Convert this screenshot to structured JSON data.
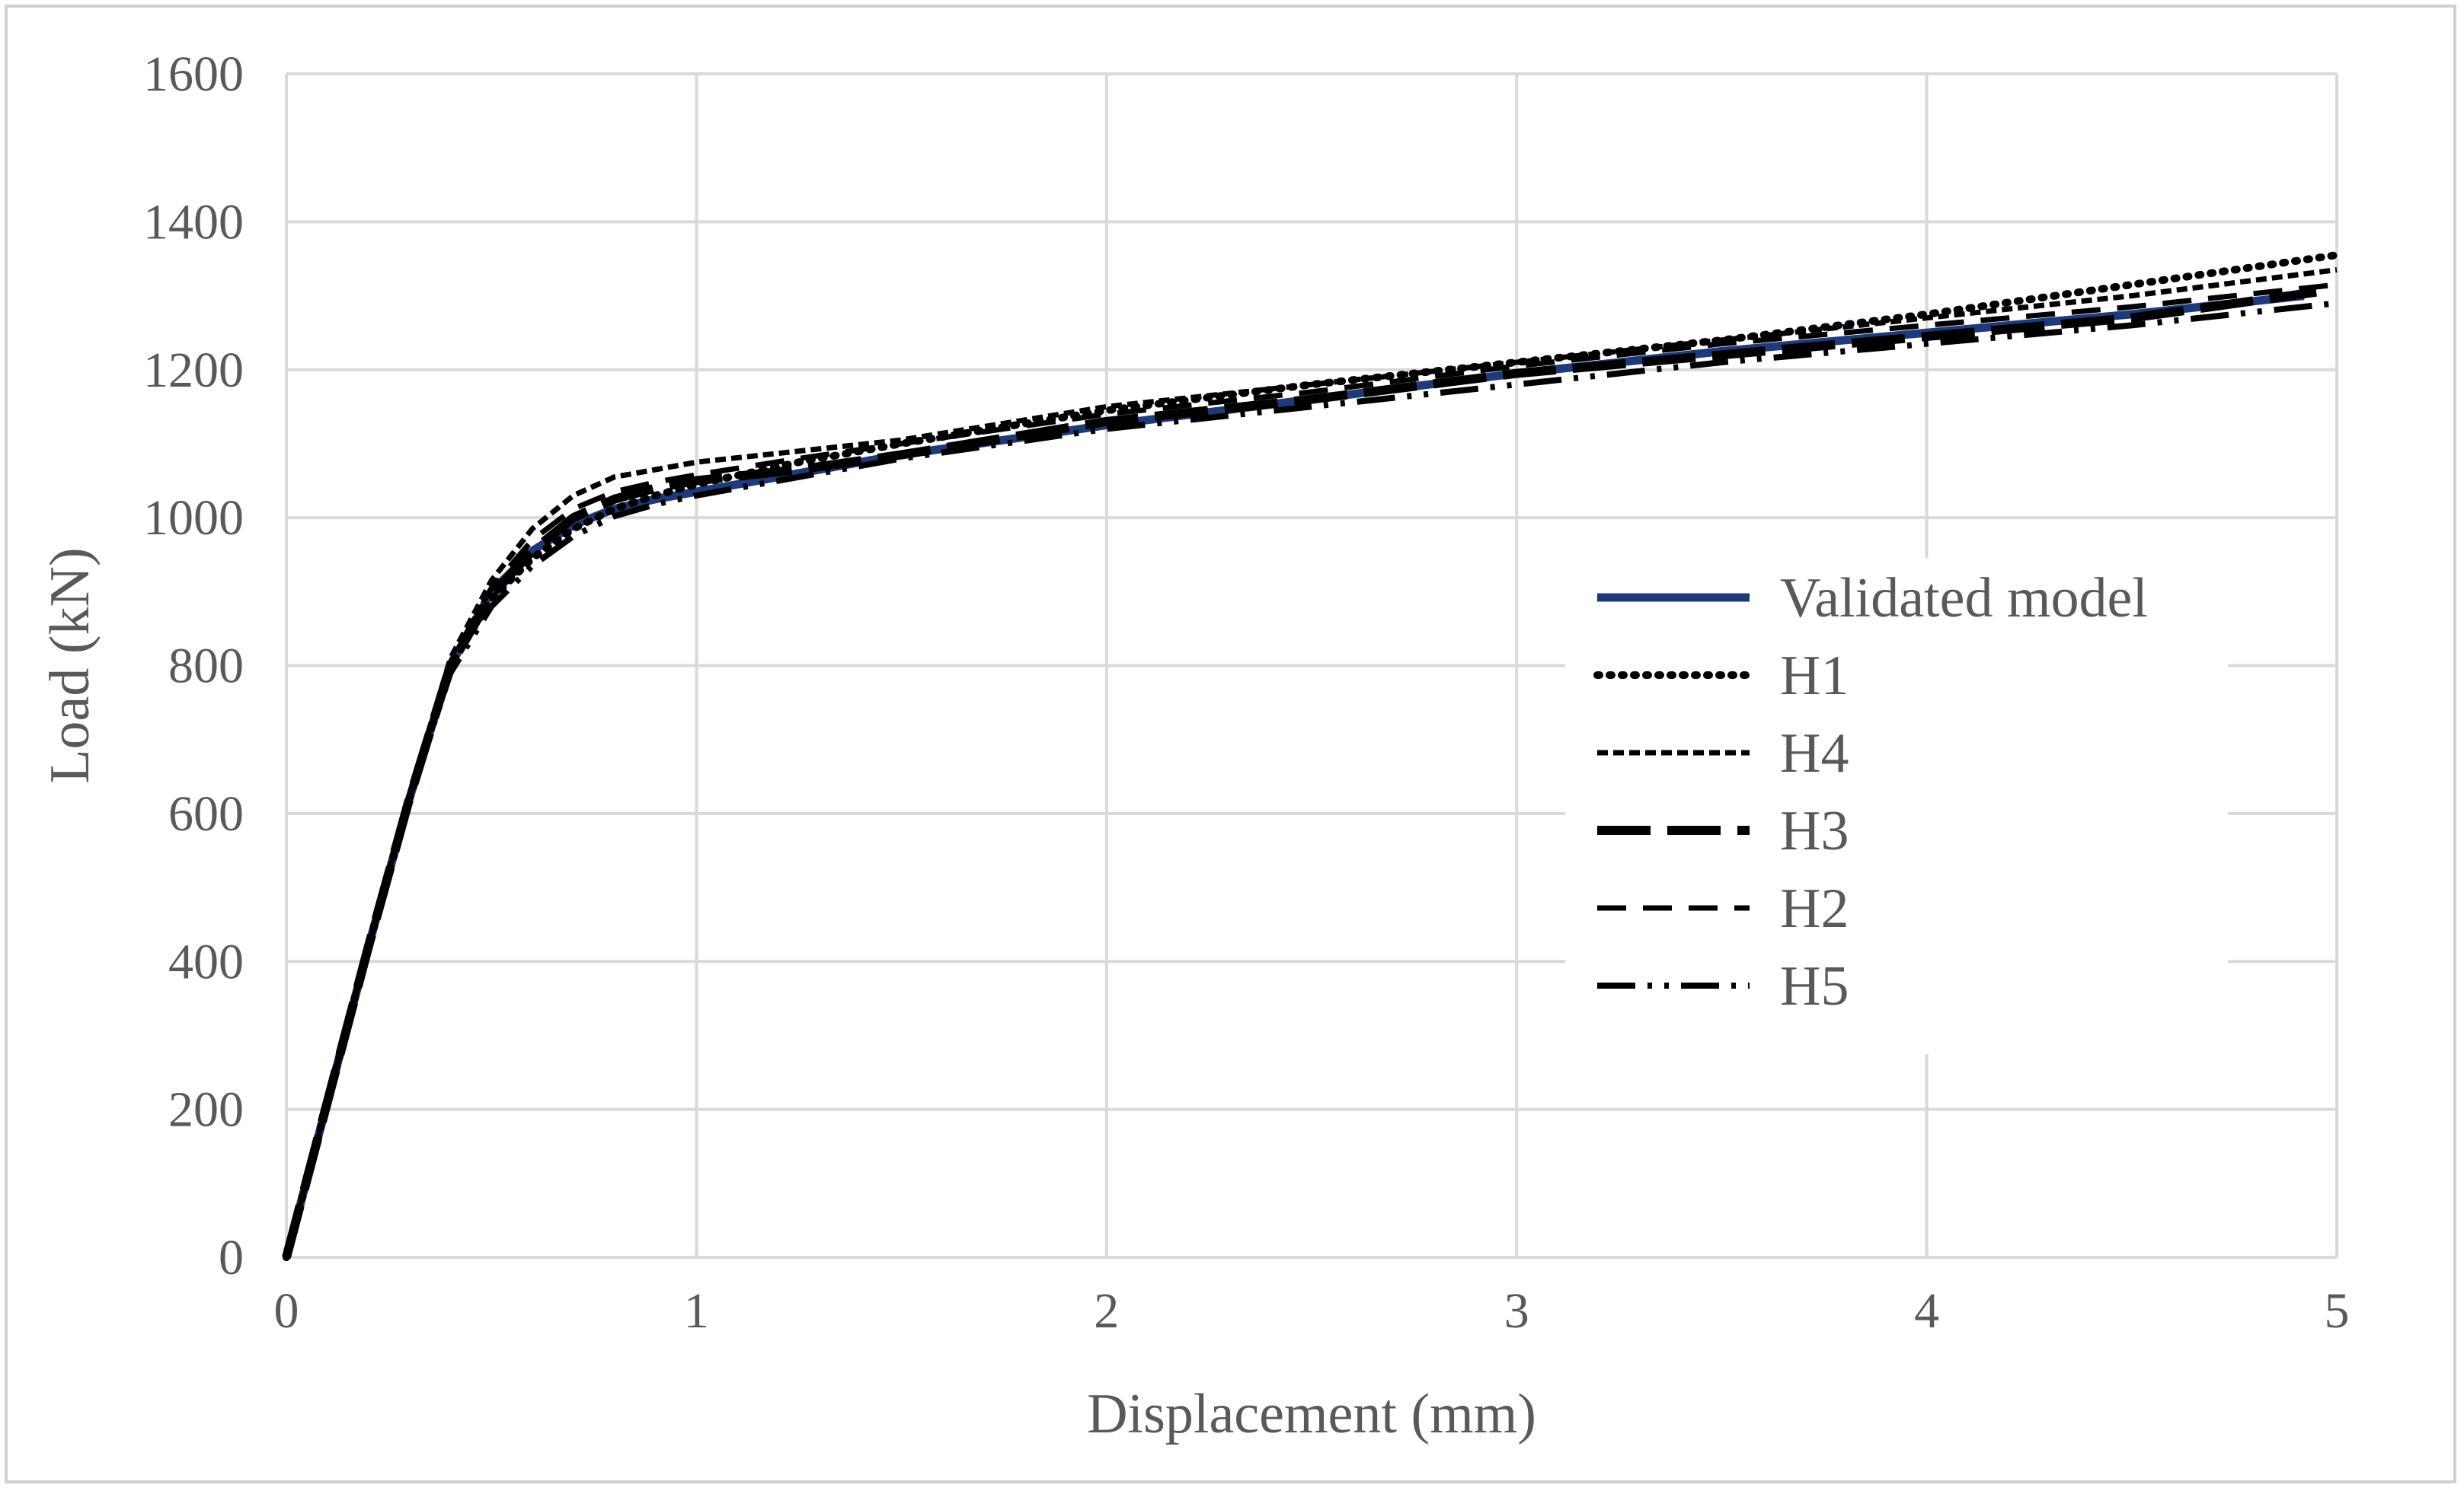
{
  "chart_data": {
    "type": "line",
    "title": "",
    "xlabel": "Displacement (mm)",
    "ylabel": "Load (kN)",
    "xlim": [
      0,
      5
    ],
    "ylim": [
      0,
      1600
    ],
    "xticks": [
      0,
      1,
      2,
      3,
      4,
      5
    ],
    "yticks": [
      0,
      200,
      400,
      600,
      800,
      1000,
      1200,
      1400,
      1600
    ],
    "grid": true,
    "legend_position": "right",
    "series": [
      {
        "name": "Validated model",
        "style": "solid",
        "color": "#1f3a7a",
        "x": [
          0,
          0.1,
          0.2,
          0.3,
          0.4,
          0.5,
          0.6,
          0.7,
          0.8,
          0.9,
          1.0,
          1.25,
          1.5,
          2.0,
          2.5,
          3.0,
          3.5,
          4.0,
          4.5,
          4.92
        ],
        "y": [
          0,
          210,
          420,
          620,
          800,
          900,
          955,
          990,
          1012,
          1025,
          1035,
          1060,
          1085,
          1125,
          1160,
          1195,
          1225,
          1250,
          1275,
          1300
        ]
      },
      {
        "name": "H1",
        "style": "dotted",
        "color": "#000000",
        "x": [
          0,
          0.1,
          0.2,
          0.3,
          0.4,
          0.5,
          0.6,
          0.7,
          0.8,
          0.9,
          1.0,
          1.25,
          1.5,
          2.0,
          2.5,
          3.0,
          3.5,
          4.0,
          4.5,
          5.0
        ],
        "y": [
          0,
          210,
          420,
          620,
          800,
          890,
          945,
          985,
          1012,
          1030,
          1045,
          1075,
          1100,
          1145,
          1180,
          1210,
          1240,
          1275,
          1315,
          1355
        ]
      },
      {
        "name": "H4",
        "style": "short-dash",
        "color": "#000000",
        "x": [
          0,
          0.1,
          0.2,
          0.3,
          0.4,
          0.5,
          0.6,
          0.7,
          0.8,
          0.9,
          1.0,
          1.25,
          1.5,
          2.0,
          2.5,
          3.0,
          3.5,
          4.0,
          4.5,
          5.0
        ],
        "y": [
          0,
          210,
          420,
          625,
          810,
          915,
          985,
          1030,
          1055,
          1065,
          1075,
          1090,
          1105,
          1150,
          1180,
          1210,
          1240,
          1270,
          1300,
          1335
        ]
      },
      {
        "name": "H3",
        "style": "long-dash",
        "color": "#000000",
        "x": [
          0,
          0.1,
          0.2,
          0.3,
          0.4,
          0.5,
          0.6,
          0.7,
          0.8,
          0.9,
          1.0,
          1.25,
          1.5,
          2.0,
          2.5,
          3.0,
          3.5,
          4.0,
          4.5,
          4.95
        ],
        "y": [
          0,
          210,
          420,
          620,
          800,
          895,
          955,
          1000,
          1025,
          1040,
          1050,
          1065,
          1085,
          1130,
          1160,
          1195,
          1220,
          1245,
          1270,
          1305
        ]
      },
      {
        "name": "H2",
        "style": "dash",
        "color": "#000000",
        "x": [
          0,
          0.1,
          0.2,
          0.3,
          0.4,
          0.5,
          0.6,
          0.7,
          0.8,
          0.9,
          1.0,
          1.25,
          1.5,
          2.0,
          2.5,
          3.0,
          3.5,
          4.0,
          4.5,
          5.0
        ],
        "y": [
          0,
          210,
          420,
          620,
          805,
          905,
          970,
          1012,
          1035,
          1048,
          1058,
          1080,
          1100,
          1140,
          1170,
          1205,
          1235,
          1260,
          1285,
          1315
        ]
      },
      {
        "name": "H5",
        "style": "dash-dot-dot",
        "color": "#000000",
        "x": [
          0,
          0.1,
          0.2,
          0.3,
          0.4,
          0.5,
          0.6,
          0.7,
          0.8,
          0.9,
          1.0,
          1.25,
          1.5,
          2.0,
          2.5,
          3.0,
          3.5,
          4.0,
          4.5,
          5.0
        ],
        "y": [
          0,
          210,
          420,
          620,
          790,
          880,
          935,
          975,
          1002,
          1018,
          1030,
          1055,
          1080,
          1120,
          1150,
          1180,
          1210,
          1235,
          1260,
          1290
        ]
      }
    ]
  }
}
